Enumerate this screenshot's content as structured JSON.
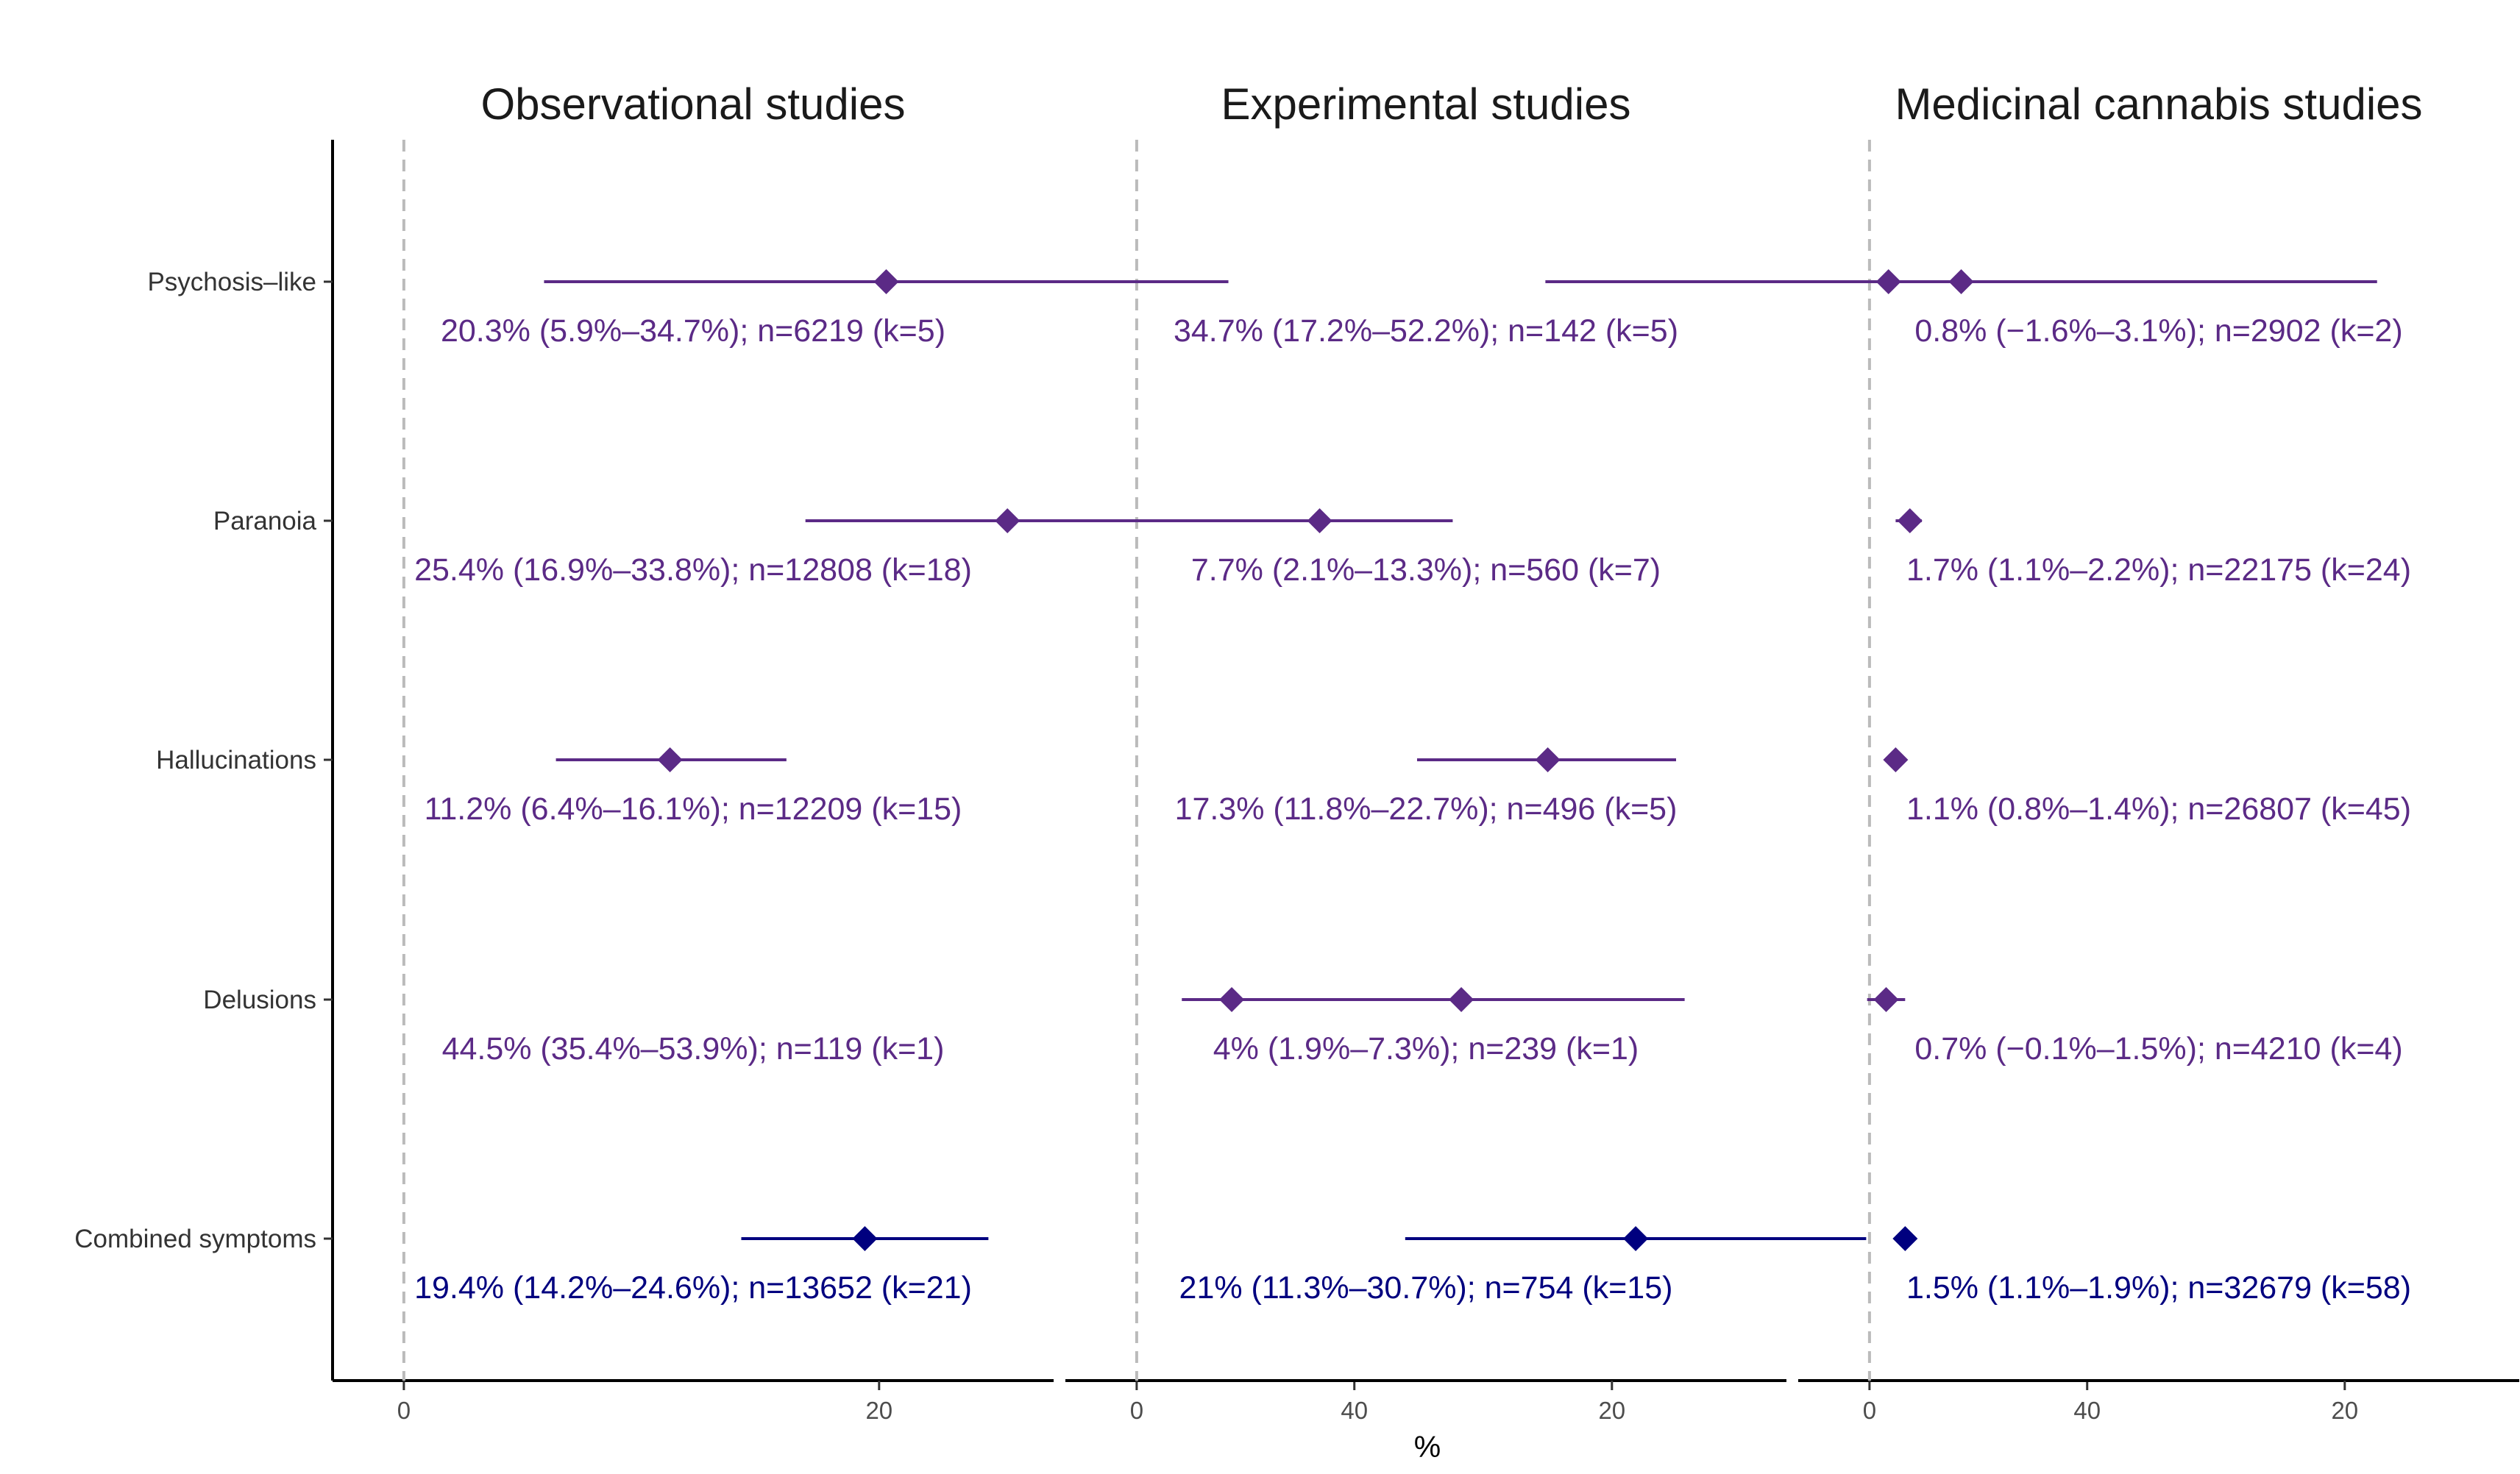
{
  "chart_data": {
    "type": "forest",
    "xlabel": "%",
    "xlim": [
      -3,
      59
    ],
    "xticks": [
      0,
      20,
      40
    ],
    "reference_line": 0,
    "grid": false,
    "colors": {
      "symptom": "#5b2a86",
      "combined": "#00007f"
    },
    "rows": [
      "Psychosis–like",
      "Paranoia",
      "Hallucinations",
      "Delusions",
      "Combined symptoms"
    ],
    "panels": [
      {
        "title": "Observational studies",
        "points": [
          {
            "row": 0,
            "estimate": 20.3,
            "lower": 5.9,
            "upper": 34.7,
            "label": "20.3% (5.9%–34.7%); n=6219 (k=5)",
            "kind": "symptom"
          },
          {
            "row": 1,
            "estimate": 25.4,
            "lower": 16.9,
            "upper": 33.8,
            "label": "25.4% (16.9%–33.8%); n=12808 (k=18)",
            "kind": "symptom"
          },
          {
            "row": 2,
            "estimate": 11.2,
            "lower": 6.4,
            "upper": 16.1,
            "label": "11.2% (6.4%–16.1%); n=12209 (k=15)",
            "kind": "symptom"
          },
          {
            "row": 3,
            "estimate": 44.5,
            "lower": 35.4,
            "upper": 53.9,
            "label": "44.5% (35.4%–53.9%); n=119 (k=1)",
            "kind": "symptom"
          },
          {
            "row": 4,
            "estimate": 19.4,
            "lower": 14.2,
            "upper": 24.6,
            "label": "19.4% (14.2%–24.6%); n=13652 (k=21)",
            "kind": "combined"
          }
        ]
      },
      {
        "title": "Experimental studies",
        "points": [
          {
            "row": 0,
            "estimate": 34.7,
            "lower": 17.2,
            "upper": 52.2,
            "label": "34.7% (17.2%–52.2%); n=142 (k=5)",
            "kind": "symptom"
          },
          {
            "row": 1,
            "estimate": 7.7,
            "lower": 2.1,
            "upper": 13.3,
            "label": "7.7% (2.1%–13.3%); n=560 (k=7)",
            "kind": "symptom"
          },
          {
            "row": 2,
            "estimate": 17.3,
            "lower": 11.8,
            "upper": 22.7,
            "label": "17.3% (11.8%–22.7%); n=496 (k=5)",
            "kind": "symptom"
          },
          {
            "row": 3,
            "estimate": 4,
            "lower": 1.9,
            "upper": 7.3,
            "label": "4% (1.9%–7.3%); n=239 (k=1)",
            "kind": "symptom"
          },
          {
            "row": 4,
            "estimate": 21,
            "lower": 11.3,
            "upper": 30.7,
            "label": "21% (11.3%–30.7%); n=754 (k=15)",
            "kind": "combined"
          }
        ]
      },
      {
        "title": "Medicinal cannabis studies",
        "points": [
          {
            "row": 0,
            "estimate": 0.8,
            "lower": -1.6,
            "upper": 3.1,
            "label": "0.8% (−1.6%–3.1%); n=2902 (k=2)",
            "kind": "symptom"
          },
          {
            "row": 1,
            "estimate": 1.7,
            "lower": 1.1,
            "upper": 2.2,
            "label": "1.7% (1.1%–2.2%); n=22175 (k=24)",
            "kind": "symptom"
          },
          {
            "row": 2,
            "estimate": 1.1,
            "lower": 0.8,
            "upper": 1.4,
            "label": "1.1% (0.8%–1.4%); n=26807 (k=45)",
            "kind": "symptom"
          },
          {
            "row": 3,
            "estimate": 0.7,
            "lower": -0.1,
            "upper": 1.5,
            "label": "0.7% (−0.1%–1.5%); n=4210 (k=4)",
            "kind": "symptom"
          },
          {
            "row": 4,
            "estimate": 1.5,
            "lower": 1.1,
            "upper": 1.9,
            "label": "1.5% (1.1%–1.9%); n=32679 (k=58)",
            "kind": "combined"
          }
        ]
      }
    ]
  }
}
